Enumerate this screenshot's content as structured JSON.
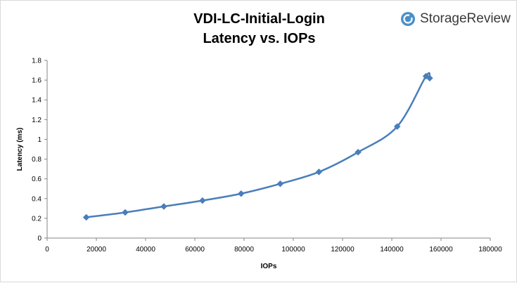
{
  "brand": {
    "name": "StorageReview",
    "icon": "storagereview-logo-icon",
    "color": "#4a90c8"
  },
  "chart_data": {
    "type": "line",
    "title": "VDI-LC-Initial-Login",
    "subtitle": "Latency vs. IOPs",
    "xlabel": "IOPs",
    "ylabel": "Latency (ms)",
    "xlim": [
      0,
      180000
    ],
    "ylim": [
      0,
      1.8
    ],
    "x_ticks": [
      "0",
      "20000",
      "40000",
      "60000",
      "80000",
      "100000",
      "120000",
      "140000",
      "160000",
      "180000"
    ],
    "y_ticks": [
      "0",
      "0.2",
      "0.4",
      "0.6",
      "0.8",
      "1",
      "1.2",
      "1.4",
      "1.6",
      "1.8"
    ],
    "grid": false,
    "legend": "none",
    "series": [
      {
        "color": "#4a7ebb",
        "x": [
          15900,
          31700,
          47400,
          63100,
          78800,
          94700,
          110400,
          126300,
          142200,
          153900,
          155400
        ],
        "y": [
          0.21,
          0.26,
          0.32,
          0.38,
          0.45,
          0.55,
          0.67,
          0.87,
          1.13,
          1.64,
          1.62
        ]
      }
    ]
  }
}
